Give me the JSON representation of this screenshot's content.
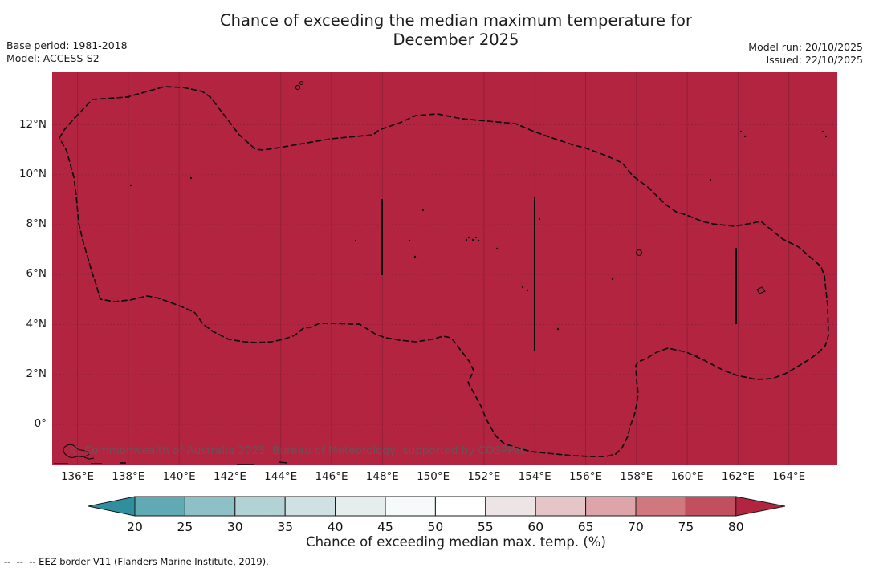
{
  "title": {
    "line1": "Chance of exceeding the median maximum temperature for",
    "line2": "December 2025"
  },
  "meta_left": {
    "base_period": "Base period: 1981-2018",
    "model": "Model: ACCESS-S2"
  },
  "meta_right": {
    "model_run": "Model run: 20/10/2025",
    "issued": "Issued: 22/10/2025"
  },
  "map": {
    "fill_color": "#b32441",
    "grid_color": "#8e1e39",
    "border_color": "#111111",
    "watermark": "© Commonwealth of Australia 2025, Bureau of Meteorology, supported by COSPPac",
    "y_ticks": [
      "12°N",
      "10°N",
      "8°N",
      "6°N",
      "4°N",
      "2°N",
      "0°"
    ],
    "x_ticks": [
      "136°E",
      "138°E",
      "140°E",
      "142°E",
      "144°E",
      "146°E",
      "148°E",
      "150°E",
      "152°E",
      "154°E",
      "156°E",
      "158°E",
      "160°E",
      "162°E",
      "164°E"
    ]
  },
  "colorbar": {
    "label": "Chance of exceeding median max. temp. (%)",
    "ticks": [
      "20",
      "25",
      "30",
      "35",
      "40",
      "45",
      "50",
      "55",
      "60",
      "65",
      "70",
      "75",
      "80"
    ],
    "segment_colors": [
      "#61aab3",
      "#8dc1c7",
      "#b1d3d5",
      "#cfe1e2",
      "#e5eded",
      "#f7fafa",
      "#ffffff",
      "#ece4e5",
      "#e6c5c9",
      "#dda4aa",
      "#d1787f",
      "#c24f5d"
    ],
    "arrow_left_color": "#2f8f9e",
    "arrow_right_color": "#b32441",
    "outline_color": "#1a1a1a"
  },
  "footnote": "--  --  -- EEZ border V11 (Flanders Marine Institute, 2019).",
  "chart_data": {
    "type": "heatmap",
    "title": "Chance of exceeding the median maximum temperature for December 2025",
    "variable": "Chance of exceeding median max. temp. (%)",
    "base_period": "1981-2018",
    "model": "ACCESS-S2",
    "model_run": "20/10/2025",
    "issued": "22/10/2025",
    "x_axis": {
      "units": "degrees east",
      "ticks": [
        136,
        138,
        140,
        142,
        144,
        146,
        148,
        150,
        152,
        154,
        156,
        158,
        160,
        162,
        164
      ],
      "range": [
        135.0,
        166.9
      ]
    },
    "y_axis": {
      "units": "degrees north",
      "ticks": [
        0,
        2,
        4,
        6,
        8,
        10,
        12
      ],
      "range": [
        -1.6,
        14.1
      ]
    },
    "colorbar": {
      "ticks": [
        20,
        25,
        30,
        35,
        40,
        45,
        50,
        55,
        60,
        65,
        70,
        75,
        80
      ],
      "units": "%",
      "open_ended_both_sides": true
    },
    "values_summary": "Entire mapped ocean/EEZ domain is shaded in the highest class (>80% chance of exceeding the median maximum temperature)",
    "overlays": [
      "Dashed black outline: EEZ border V11 (Flanders Marine Institute, 2019)",
      "Small black marks: islands/atolls",
      "Gray watermark: © Commonwealth of Australia 2025, Bureau of Meteorology, supported by COSPPac"
    ],
    "grid": "2-degree graticule; solid vertical lines, dotted horizontal lines"
  }
}
